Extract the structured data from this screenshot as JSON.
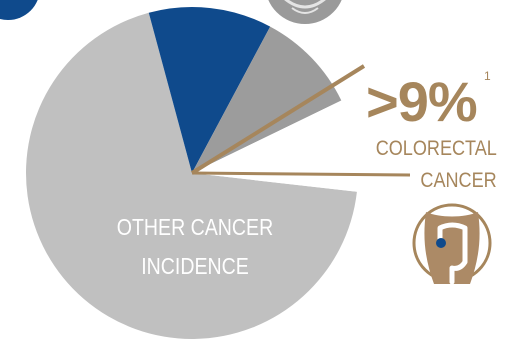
{
  "chart_data": {
    "type": "pie",
    "slices": [
      {
        "label": "OTHER CANCER INCIDENCE",
        "value": 69,
        "color": "#c0c0c0"
      },
      {
        "label": "",
        "value": 12,
        "color": "#0f4a8c"
      },
      {
        "label": "",
        "value": 10,
        "color": "#9c9c9c"
      },
      {
        "label": "COLORECTAL CANCER",
        "value": 9,
        "color": "#ffffff"
      }
    ],
    "callout": {
      "value": ">9%",
      "footnote": "1",
      "label_line1": "COLORECTAL",
      "label_line2": "CANCER"
    },
    "inner_label": {
      "line1": "OTHER CANCER",
      "line2": "INCIDENCE"
    }
  },
  "colors": {
    "accent": "#a6865c",
    "slice_gray_light": "#c0c0c0",
    "slice_blue": "#0f4a8c",
    "slice_gray_mid": "#9c9c9c",
    "icon_skin": "#ac8a66"
  },
  "icons": [
    "colon-icon",
    "decorative-circle-blue",
    "decorative-circle-gray"
  ]
}
